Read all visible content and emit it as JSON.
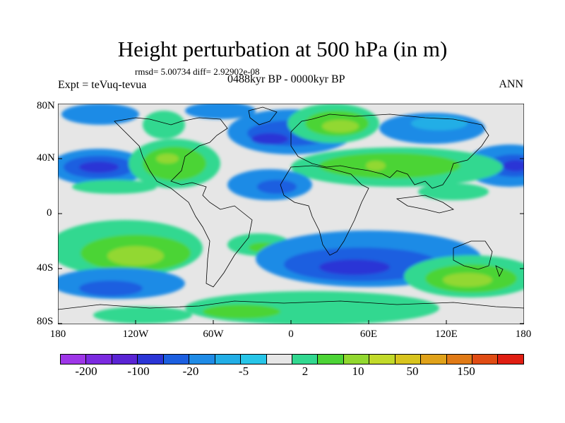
{
  "title": "Height perturbation at 500 hPa (in m)",
  "stats": "rmsd= 5.00734 diff= 2.92902e-08",
  "experiment": "Expt = teVuq-tevua",
  "period": "0488kyr BP - 0000kyr BP",
  "season": "ANN",
  "lat_labels": [
    "80N",
    "40N",
    "0",
    "40S",
    "80S"
  ],
  "lon_labels": [
    "180",
    "120W",
    "60W",
    "0",
    "60E",
    "120E",
    "180"
  ],
  "colorbar": {
    "colors": [
      "#9e36e8",
      "#7b2ae0",
      "#5a24d4",
      "#2b35d6",
      "#1c5fe0",
      "#1f8be6",
      "#22aee6",
      "#27c5e8",
      "#e6e6e6",
      "#32d890",
      "#4cd436",
      "#92d830",
      "#c2da2a",
      "#d8c41e",
      "#e0a21a",
      "#e07a16",
      "#e04c14",
      "#e01e12"
    ],
    "labels": [
      "-200",
      "-100",
      "-20",
      "-5",
      "2",
      "10",
      "50",
      "150"
    ]
  }
}
